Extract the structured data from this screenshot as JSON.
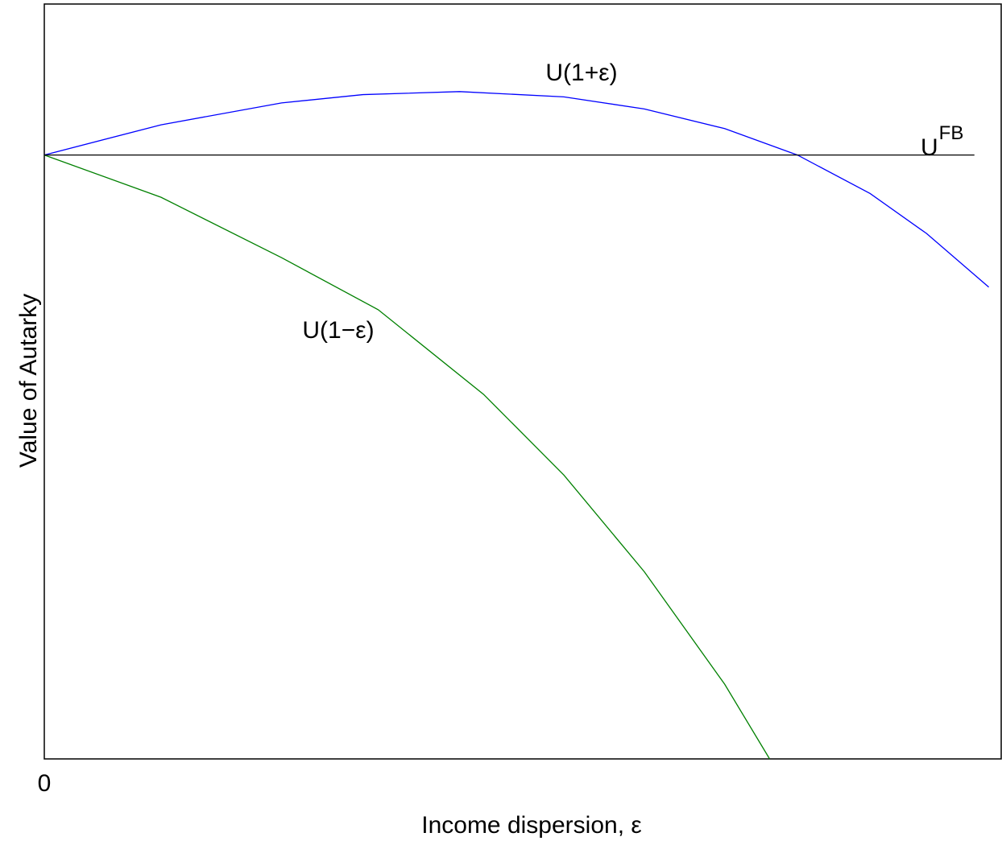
{
  "chart_data": {
    "type": "line",
    "xlabel": "Income dispersion, ε",
    "ylabel": "Value of Autarky",
    "xlim": [
      0,
      1
    ],
    "ylim": [
      0,
      1
    ],
    "xticks": [
      0
    ],
    "series": [
      {
        "name": "U(1+ε)",
        "color": "#0000ff",
        "x": [
          0,
          0.122,
          0.248,
          0.333,
          0.434,
          0.543,
          0.627,
          0.711,
          0.787,
          0.863,
          0.922,
          0.987
        ],
        "values": [
          0.8,
          0.84,
          0.869,
          0.88,
          0.884,
          0.877,
          0.861,
          0.835,
          0.8,
          0.749,
          0.696,
          0.625
        ]
      },
      {
        "name": "U(1−ε)",
        "color": "#008000",
        "x": [
          0,
          0.122,
          0.248,
          0.349,
          0.459,
          0.543,
          0.627,
          0.711,
          0.758
        ],
        "values": [
          0.8,
          0.744,
          0.664,
          0.595,
          0.483,
          0.376,
          0.248,
          0.099,
          0
        ]
      },
      {
        "name": "U",
        "name_sup": "FB",
        "color": "#000000",
        "x": [
          0,
          0.972
        ],
        "values": [
          0.8,
          0.8
        ]
      }
    ]
  }
}
